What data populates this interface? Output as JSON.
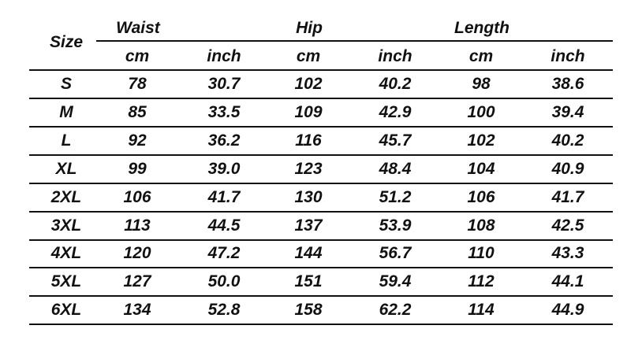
{
  "table": {
    "size_header": "Size",
    "groups": [
      "Waist",
      "Hip",
      "Length"
    ],
    "units": [
      "cm",
      "inch",
      "cm",
      "inch",
      "cm",
      "inch"
    ],
    "rows": [
      [
        "S",
        "78",
        "30.7",
        "102",
        "40.2",
        "98",
        "38.6"
      ],
      [
        "M",
        "85",
        "33.5",
        "109",
        "42.9",
        "100",
        "39.4"
      ],
      [
        "L",
        "92",
        "36.2",
        "116",
        "45.7",
        "102",
        "40.2"
      ],
      [
        "XL",
        "99",
        "39.0",
        "123",
        "48.4",
        "104",
        "40.9"
      ],
      [
        "2XL",
        "106",
        "41.7",
        "130",
        "51.2",
        "106",
        "41.7"
      ],
      [
        "3XL",
        "113",
        "44.5",
        "137",
        "53.9",
        "108",
        "42.5"
      ],
      [
        "4XL",
        "120",
        "47.2",
        "144",
        "56.7",
        "110",
        "43.3"
      ],
      [
        "5XL",
        "127",
        "50.0",
        "151",
        "59.4",
        "112",
        "44.1"
      ],
      [
        "6XL",
        "134",
        "52.8",
        "158",
        "62.2",
        "114",
        "44.9"
      ]
    ]
  }
}
